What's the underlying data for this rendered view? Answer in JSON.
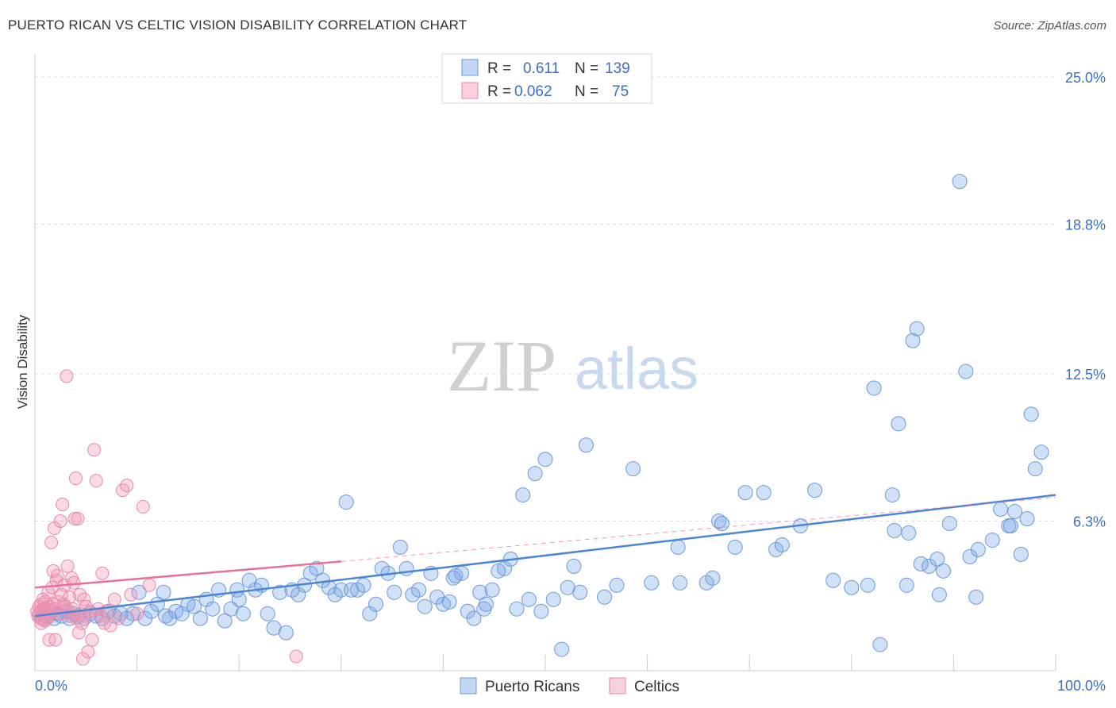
{
  "title": "PUERTO RICAN VS CELTIC VISION DISABILITY CORRELATION CHART",
  "source": "Source: ZipAtlas.com",
  "watermark": {
    "zip": "ZIP",
    "atlas": "atlas"
  },
  "colors": {
    "blue": "#4a86d4",
    "blue_fill": "rgba(120,165,230,0.35)",
    "pink": "#e8709a",
    "pink_fill": "rgba(240,150,180,0.35)",
    "grid": "#dddddd",
    "tick_text": "#3a6fc4"
  },
  "legend": {
    "rows": [
      {
        "r_label": "R =",
        "r_value": "0.611",
        "n_label": "N =",
        "n_value": "139"
      },
      {
        "r_label": "R =",
        "r_value": "0.062",
        "n_label": "N =",
        "n_value": "75"
      }
    ]
  },
  "chart_data": {
    "type": "scatter",
    "title": "PUERTO RICAN VS CELTIC VISION DISABILITY CORRELATION CHART",
    "xlabel": "",
    "ylabel": "Vision Disability",
    "xlim": [
      0,
      100
    ],
    "ylim": [
      0,
      25
    ],
    "x_tick_labels": [
      "0.0%",
      "100.0%"
    ],
    "y_ticks": [
      6.3,
      12.5,
      18.8,
      25.0
    ],
    "y_tick_labels": [
      "6.3%",
      "12.5%",
      "18.8%",
      "25.0%"
    ],
    "grid": "horizontal dashed",
    "legend_position": "top-center",
    "series": [
      {
        "name": "Puerto Ricans",
        "color": "#4a86d4",
        "trend": {
          "x0": 0,
          "y0": 2.3,
          "x1": 100,
          "y1": 7.4,
          "style": "solid"
        },
        "points": [
          [
            0.5,
            2.4
          ],
          [
            0.8,
            2.2
          ],
          [
            1.0,
            2.6
          ],
          [
            1.3,
            2.3
          ],
          [
            1.6,
            2.5
          ],
          [
            1.9,
            2.2
          ],
          [
            2.2,
            2.4
          ],
          [
            2.6,
            2.3
          ],
          [
            3.0,
            2.5
          ],
          [
            3.4,
            2.2
          ],
          [
            3.8,
            2.4
          ],
          [
            4.2,
            2.3
          ],
          [
            4.8,
            2.2
          ],
          [
            5.4,
            2.4
          ],
          [
            6.0,
            2.3
          ],
          [
            6.6,
            2.2
          ],
          [
            7.2,
            2.5
          ],
          [
            7.8,
            2.3
          ],
          [
            8.4,
            2.4
          ],
          [
            9.0,
            2.2
          ],
          [
            9.6,
            2.4
          ],
          [
            10.2,
            3.3
          ],
          [
            10.8,
            2.2
          ],
          [
            11.4,
            2.5
          ],
          [
            12.0,
            2.8
          ],
          [
            12.6,
            3.3
          ],
          [
            13.2,
            2.2
          ],
          [
            13.8,
            2.5
          ],
          [
            14.4,
            2.4
          ],
          [
            15.0,
            2.8
          ],
          [
            15.6,
            2.7
          ],
          [
            16.2,
            2.2
          ],
          [
            16.8,
            3.0
          ],
          [
            17.4,
            2.6
          ],
          [
            18.0,
            3.4
          ],
          [
            18.6,
            2.1
          ],
          [
            19.2,
            2.6
          ],
          [
            19.8,
            3.4
          ],
          [
            20.4,
            2.4
          ],
          [
            21.0,
            3.8
          ],
          [
            21.6,
            3.4
          ],
          [
            22.2,
            3.6
          ],
          [
            22.8,
            2.4
          ],
          [
            23.4,
            1.8
          ],
          [
            24.0,
            3.3
          ],
          [
            24.6,
            1.6
          ],
          [
            25.2,
            3.4
          ],
          [
            25.8,
            3.2
          ],
          [
            26.4,
            3.6
          ],
          [
            27.0,
            4.1
          ],
          [
            27.6,
            4.3
          ],
          [
            28.2,
            3.8
          ],
          [
            28.8,
            3.5
          ],
          [
            29.4,
            3.2
          ],
          [
            30.0,
            3.4
          ],
          [
            30.5,
            7.1
          ],
          [
            31.0,
            3.4
          ],
          [
            31.6,
            3.4
          ],
          [
            32.2,
            3.6
          ],
          [
            32.8,
            2.4
          ],
          [
            33.4,
            2.8
          ],
          [
            34.0,
            4.3
          ],
          [
            34.6,
            4.1
          ],
          [
            35.2,
            3.3
          ],
          [
            35.8,
            5.2
          ],
          [
            36.4,
            4.3
          ],
          [
            37.0,
            3.2
          ],
          [
            37.6,
            3.4
          ],
          [
            38.2,
            2.7
          ],
          [
            38.8,
            4.1
          ],
          [
            39.4,
            3.1
          ],
          [
            40.0,
            2.8
          ],
          [
            40.6,
            2.9
          ],
          [
            41.2,
            4.0
          ],
          [
            41.8,
            4.1
          ],
          [
            42.4,
            2.5
          ],
          [
            43.0,
            2.2
          ],
          [
            43.6,
            3.3
          ],
          [
            44.2,
            2.8
          ],
          [
            44.8,
            3.4
          ],
          [
            45.4,
            4.2
          ],
          [
            46.0,
            4.3
          ],
          [
            46.6,
            4.7
          ],
          [
            47.2,
            2.6
          ],
          [
            47.8,
            7.4
          ],
          [
            48.4,
            3.0
          ],
          [
            49.0,
            8.3
          ],
          [
            49.6,
            2.5
          ],
          [
            50.0,
            8.9
          ],
          [
            50.8,
            3.0
          ],
          [
            51.6,
            0.9
          ],
          [
            52.2,
            3.5
          ],
          [
            52.8,
            4.4
          ],
          [
            53.4,
            3.3
          ],
          [
            54.0,
            9.5
          ],
          [
            55.8,
            3.1
          ],
          [
            58.6,
            8.5
          ],
          [
            60.4,
            3.7
          ],
          [
            63.2,
            3.7
          ],
          [
            65.8,
            3.7
          ],
          [
            66.4,
            3.9
          ],
          [
            67.0,
            6.3
          ],
          [
            67.3,
            6.2
          ],
          [
            68.6,
            5.2
          ],
          [
            69.6,
            7.5
          ],
          [
            71.4,
            7.5
          ],
          [
            72.6,
            5.1
          ],
          [
            73.2,
            5.3
          ],
          [
            75.0,
            6.1
          ],
          [
            76.4,
            7.6
          ],
          [
            78.2,
            3.8
          ],
          [
            80.0,
            3.5
          ],
          [
            81.6,
            3.6
          ],
          [
            82.2,
            11.9
          ],
          [
            82.8,
            1.1
          ],
          [
            84.0,
            7.4
          ],
          [
            84.2,
            5.9
          ],
          [
            84.6,
            10.4
          ],
          [
            85.4,
            3.6
          ],
          [
            86.0,
            13.9
          ],
          [
            86.4,
            14.4
          ],
          [
            86.8,
            4.5
          ],
          [
            87.6,
            4.4
          ],
          [
            88.4,
            4.7
          ],
          [
            88.6,
            3.2
          ],
          [
            89.0,
            4.2
          ],
          [
            89.6,
            6.2
          ],
          [
            90.6,
            20.6
          ],
          [
            91.2,
            12.6
          ],
          [
            91.6,
            4.8
          ],
          [
            92.2,
            3.1
          ],
          [
            92.4,
            5.1
          ],
          [
            93.8,
            5.5
          ],
          [
            94.6,
            6.8
          ],
          [
            95.4,
            6.1
          ],
          [
            95.6,
            6.1
          ],
          [
            96.0,
            6.7
          ],
          [
            96.6,
            4.9
          ],
          [
            97.2,
            6.4
          ],
          [
            97.6,
            10.8
          ],
          [
            98.0,
            8.5
          ],
          [
            98.6,
            9.2
          ],
          [
            85.6,
            5.8
          ],
          [
            63.0,
            5.2
          ],
          [
            57.0,
            3.6
          ],
          [
            44.0,
            2.6
          ],
          [
            41.0,
            3.9
          ],
          [
            20.0,
            3.0
          ],
          [
            12.8,
            2.3
          ]
        ]
      },
      {
        "name": "Celtics",
        "color": "#e8709a",
        "trend": {
          "x0": 0,
          "y0": 3.5,
          "x1": 30,
          "y1": 4.6,
          "style": "solid",
          "extend_to": {
            "x": 100,
            "y": 7.3
          }
        },
        "points": [
          [
            0.2,
            2.5
          ],
          [
            0.3,
            2.3
          ],
          [
            0.4,
            2.7
          ],
          [
            0.5,
            2.2
          ],
          [
            0.6,
            2.8
          ],
          [
            0.7,
            2.4
          ],
          [
            0.8,
            2.6
          ],
          [
            0.9,
            2.3
          ],
          [
            1.0,
            2.9
          ],
          [
            1.1,
            2.5
          ],
          [
            1.2,
            2.2
          ],
          [
            1.3,
            3.3
          ],
          [
            1.4,
            2.7
          ],
          [
            1.5,
            2.4
          ],
          [
            1.6,
            5.4
          ],
          [
            1.7,
            3.5
          ],
          [
            1.8,
            4.2
          ],
          [
            1.9,
            6.0
          ],
          [
            2.0,
            2.6
          ],
          [
            2.1,
            3.8
          ],
          [
            2.2,
            4.0
          ],
          [
            2.3,
            2.9
          ],
          [
            2.4,
            2.4
          ],
          [
            2.5,
            6.3
          ],
          [
            2.6,
            3.2
          ],
          [
            2.7,
            7.0
          ],
          [
            2.8,
            2.8
          ],
          [
            2.9,
            3.6
          ],
          [
            3.0,
            2.7
          ],
          [
            3.1,
            12.4
          ],
          [
            3.2,
            4.4
          ],
          [
            3.3,
            2.5
          ],
          [
            3.4,
            3.1
          ],
          [
            3.5,
            2.3
          ],
          [
            3.6,
            3.9
          ],
          [
            3.7,
            2.6
          ],
          [
            3.8,
            3.7
          ],
          [
            3.9,
            6.4
          ],
          [
            4.0,
            8.1
          ],
          [
            4.1,
            2.2
          ],
          [
            4.2,
            6.4
          ],
          [
            4.3,
            1.6
          ],
          [
            4.4,
            3.2
          ],
          [
            4.5,
            2.4
          ],
          [
            4.6,
            2.0
          ],
          [
            4.7,
            0.5
          ],
          [
            4.8,
            3.0
          ],
          [
            4.9,
            2.3
          ],
          [
            5.0,
            2.7
          ],
          [
            5.2,
            0.8
          ],
          [
            5.4,
            2.5
          ],
          [
            5.6,
            1.3
          ],
          [
            5.8,
            9.3
          ],
          [
            6.0,
            8.0
          ],
          [
            6.2,
            2.6
          ],
          [
            6.4,
            2.3
          ],
          [
            6.6,
            4.1
          ],
          [
            6.8,
            2.0
          ],
          [
            7.0,
            2.5
          ],
          [
            7.4,
            1.9
          ],
          [
            7.8,
            3.0
          ],
          [
            8.2,
            2.2
          ],
          [
            8.6,
            7.6
          ],
          [
            9.0,
            7.8
          ],
          [
            9.4,
            3.2
          ],
          [
            10.0,
            2.4
          ],
          [
            10.6,
            6.9
          ],
          [
            11.2,
            3.6
          ],
          [
            1.4,
            1.3
          ],
          [
            2.0,
            1.3
          ],
          [
            0.6,
            2.0
          ],
          [
            1.0,
            2.1
          ],
          [
            25.6,
            0.6
          ],
          [
            0.8,
            3.0
          ],
          [
            1.8,
            2.8
          ]
        ]
      }
    ]
  }
}
